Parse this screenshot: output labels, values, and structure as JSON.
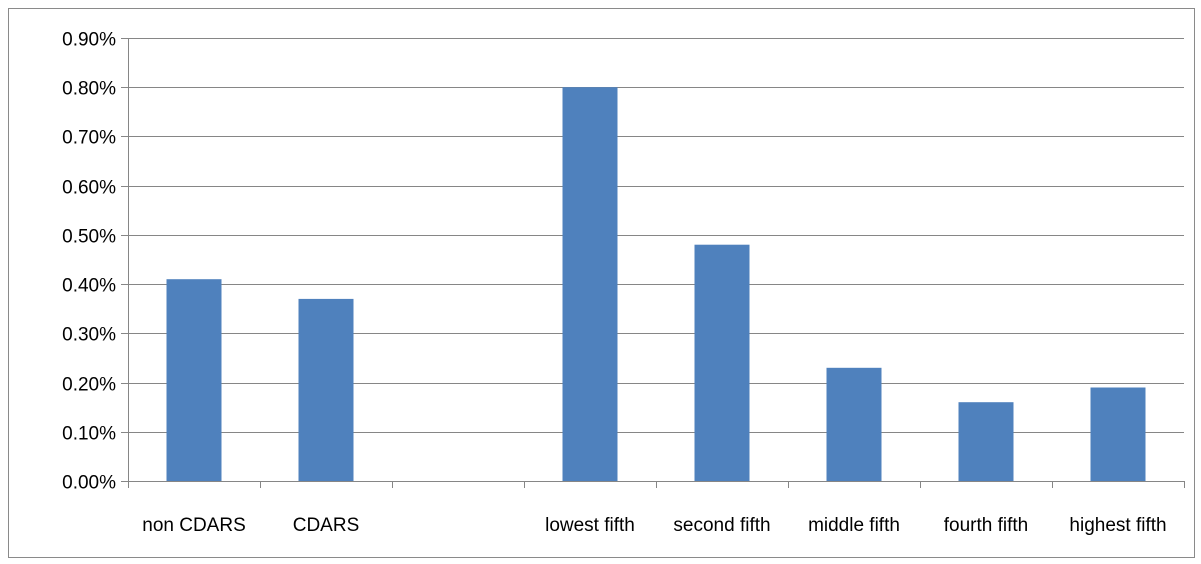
{
  "chart_data": {
    "type": "bar",
    "categories": [
      "non CDARS",
      "CDARS",
      "",
      "lowest fifth",
      "second fifth",
      "middle fifth",
      "fourth fifth",
      "highest fifth"
    ],
    "values": [
      0.0041,
      0.0037,
      null,
      0.008,
      0.0048,
      0.0023,
      0.0016,
      0.0019
    ],
    "ylim": [
      0,
      0.009
    ],
    "yticks": [
      0,
      0.001,
      0.002,
      0.003,
      0.004,
      0.005,
      0.006,
      0.007,
      0.008,
      0.009
    ],
    "ytick_labels": [
      "0.00%",
      "0.10%",
      "0.20%",
      "0.30%",
      "0.40%",
      "0.50%",
      "0.60%",
      "0.70%",
      "0.80%",
      "0.90%"
    ],
    "title": "",
    "xlabel": "",
    "ylabel": "",
    "grid": true,
    "legend": "none",
    "bar_color": "#4f81bd",
    "grid_color": "#868686"
  }
}
